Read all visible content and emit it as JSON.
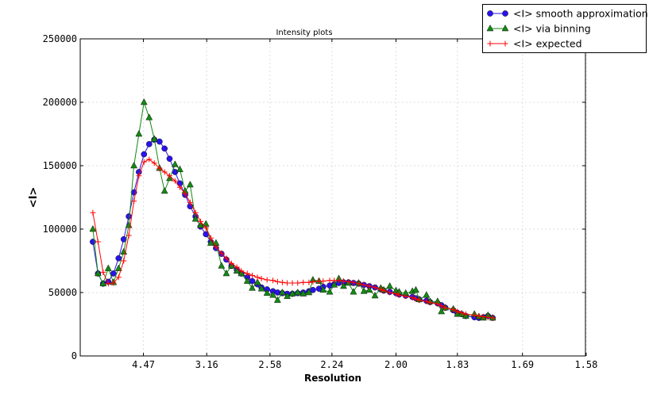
{
  "chart_data": {
    "type": "line",
    "title": "Intensity plots",
    "xlabel": "Resolution",
    "ylabel": "<I>",
    "x_scale": "reciprocal-squared (1/d^2)",
    "xlim": [
      null,
      1.58
    ],
    "ylim": [
      0,
      250000
    ],
    "grid": true,
    "legend_position": "top-right, outside plot",
    "xticks": [
      "4.47",
      "3.16",
      "2.58",
      "2.24",
      "2.00",
      "1.83",
      "1.69",
      "1.58"
    ],
    "yticks": [
      "0",
      "50000",
      "100000",
      "150000",
      "200000",
      "250000"
    ],
    "x": [
      10.0,
      8.43,
      7.43,
      6.71,
      6.17,
      5.74,
      5.39,
      5.1,
      4.85,
      4.64,
      4.45,
      4.28,
      4.13,
      3.99,
      3.87,
      3.76,
      3.65,
      3.56,
      3.47,
      3.39,
      3.31,
      3.24,
      3.17,
      3.11,
      3.05,
      2.99,
      2.94,
      2.89,
      2.84,
      2.8,
      2.75,
      2.71,
      2.67,
      2.64,
      2.6,
      2.56,
      2.53,
      2.5,
      2.47,
      2.44,
      2.41,
      2.38,
      2.35,
      2.33,
      2.3,
      2.28,
      2.25,
      2.23,
      2.21,
      2.19,
      2.17,
      2.15,
      2.13,
      2.11,
      2.09,
      2.07,
      2.05,
      2.04,
      2.02,
      2.0,
      1.99,
      1.97,
      1.95,
      1.94,
      1.93,
      1.91,
      1.9,
      1.88,
      1.87,
      1.86,
      1.84,
      1.83,
      1.82,
      1.81,
      1.79,
      1.78,
      1.77,
      1.76,
      1.75
    ],
    "series": [
      {
        "name": "<I> smooth approximation",
        "color": "#2a12ee",
        "marker": "circle",
        "values": [
          90000,
          65000,
          57000,
          58500,
          65000,
          77000,
          92000,
          110000,
          129000,
          145000,
          159000,
          167000,
          170500,
          169000,
          163500,
          155500,
          145000,
          136000,
          127000,
          118000,
          110000,
          102000,
          96000,
          90000,
          85000,
          80500,
          76000,
          71000,
          68000,
          65000,
          62000,
          59000,
          56500,
          54000,
          52500,
          51000,
          50000,
          49500,
          49000,
          49000,
          49500,
          50000,
          51000,
          52000,
          53000,
          54500,
          55500,
          56500,
          57500,
          58000,
          58000,
          57500,
          57000,
          56000,
          55000,
          54000,
          52500,
          51500,
          50500,
          49500,
          48500,
          47500,
          46500,
          45500,
          44500,
          43500,
          42500,
          41500,
          40000,
          38000,
          36000,
          34000,
          33000,
          31500,
          30500,
          30000,
          30500,
          31500,
          30000
        ]
      },
      {
        "name": "<I> via binning",
        "color": "#138a13",
        "marker": "triangle",
        "values": [
          100000,
          65000,
          57000,
          69000,
          58000,
          69000,
          82000,
          103000,
          150000,
          175000,
          200000,
          188000,
          171000,
          148000,
          130000,
          140000,
          151000,
          147000,
          130000,
          135000,
          108000,
          103000,
          104000,
          89000,
          89000,
          71000,
          65000,
          71000,
          67000,
          65000,
          59000,
          53500,
          58000,
          53000,
          49500,
          48000,
          44000,
          50000,
          47000,
          49000,
          50000,
          49000,
          50000,
          60000,
          59000,
          52000,
          50500,
          56000,
          61000,
          55000,
          57500,
          50500,
          57500,
          51000,
          52000,
          47500,
          53500,
          52000,
          55000,
          51500,
          50500,
          49500,
          51000,
          52000,
          44500,
          48000,
          43000,
          43000,
          35000,
          38000,
          37000,
          33000,
          33000,
          31500,
          33000,
          31000,
          30000,
          32000,
          30000
        ]
      },
      {
        "name": "<I> expected",
        "color": "#ff0000",
        "marker": "plus",
        "values": [
          113000,
          90000,
          66000,
          57000,
          57500,
          62000,
          75000,
          95000,
          122000,
          142000,
          153000,
          155000,
          152000,
          148000,
          145000,
          142000,
          138000,
          133000,
          128000,
          121000,
          113000,
          106000,
          101000,
          93000,
          86000,
          81000,
          77000,
          73000,
          70000,
          67000,
          65000,
          63500,
          62000,
          61000,
          60000,
          59500,
          58500,
          58000,
          57500,
          57500,
          57500,
          58000,
          58000,
          58500,
          59000,
          59000,
          59500,
          59500,
          59500,
          59000,
          58500,
          58000,
          57000,
          56000,
          55000,
          54000,
          52500,
          51500,
          50000,
          49000,
          48000,
          47000,
          46000,
          45000,
          44000,
          43000,
          42000,
          41000,
          39500,
          38000,
          36500,
          35000,
          34000,
          33000,
          32000,
          31500,
          31000,
          30500,
          30000
        ]
      }
    ]
  }
}
